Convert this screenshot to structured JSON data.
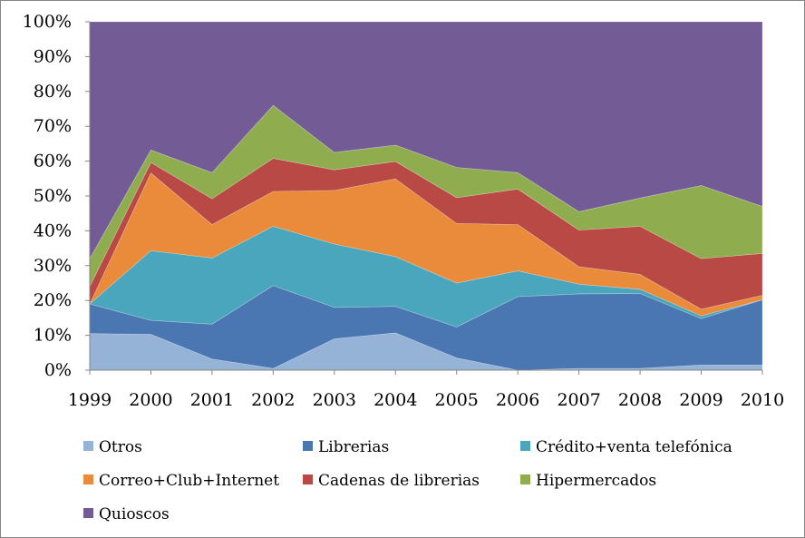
{
  "chart_data": {
    "type": "area",
    "stacked": true,
    "percent": true,
    "x": [
      "1999",
      "2000",
      "2001",
      "2002",
      "2003",
      "2004",
      "2005",
      "2006",
      "2007",
      "2008",
      "2009",
      "2010"
    ],
    "ylim": [
      0,
      100
    ],
    "yticks": [
      "0%",
      "10%",
      "20%",
      "30%",
      "40%",
      "50%",
      "60%",
      "70%",
      "80%",
      "90%",
      "100%"
    ],
    "grid": false,
    "legend_position": "bottom",
    "series": [
      {
        "name": "Otros",
        "color": "#95b3d7",
        "values": [
          10.5,
          10.3,
          3.2,
          0.5,
          9.0,
          10.7,
          3.5,
          0.0,
          0.5,
          0.5,
          1.5,
          1.5
        ]
      },
      {
        "name": "Librerias",
        "color": "#4a76b2",
        "values": [
          8.5,
          4.0,
          10.0,
          23.8,
          9.0,
          7.6,
          8.9,
          21.1,
          21.4,
          21.5,
          13.3,
          18.7
        ]
      },
      {
        "name": "Crédito+venta telefónica",
        "color": "#4aa6bd",
        "values": [
          0.0,
          20.0,
          19.0,
          17.0,
          18.2,
          14.3,
          12.6,
          7.4,
          2.8,
          1.2,
          0.8,
          0.0
        ]
      },
      {
        "name": "Correo+Club+Internet",
        "color": "#e98b3b",
        "values": [
          0.0,
          22.3,
          9.6,
          10.0,
          15.4,
          22.3,
          17.1,
          13.3,
          5.0,
          4.3,
          1.9,
          1.3
        ]
      },
      {
        "name": "Cadenas de librerias",
        "color": "#b94944",
        "values": [
          5.0,
          3.0,
          7.4,
          9.5,
          5.9,
          5.0,
          7.4,
          10.2,
          10.5,
          13.8,
          14.5,
          12.0
        ]
      },
      {
        "name": "Hipermercados",
        "color": "#8fad4f",
        "values": [
          8.0,
          3.6,
          7.5,
          15.2,
          5.0,
          4.7,
          8.7,
          4.7,
          5.3,
          8.1,
          21.0,
          13.5
        ]
      },
      {
        "name": "Quioscos",
        "color": "#735c96",
        "values": [
          68.0,
          36.8,
          43.3,
          24.0,
          37.5,
          35.4,
          41.8,
          43.3,
          54.5,
          50.6,
          47.0,
          53.0
        ]
      }
    ]
  }
}
